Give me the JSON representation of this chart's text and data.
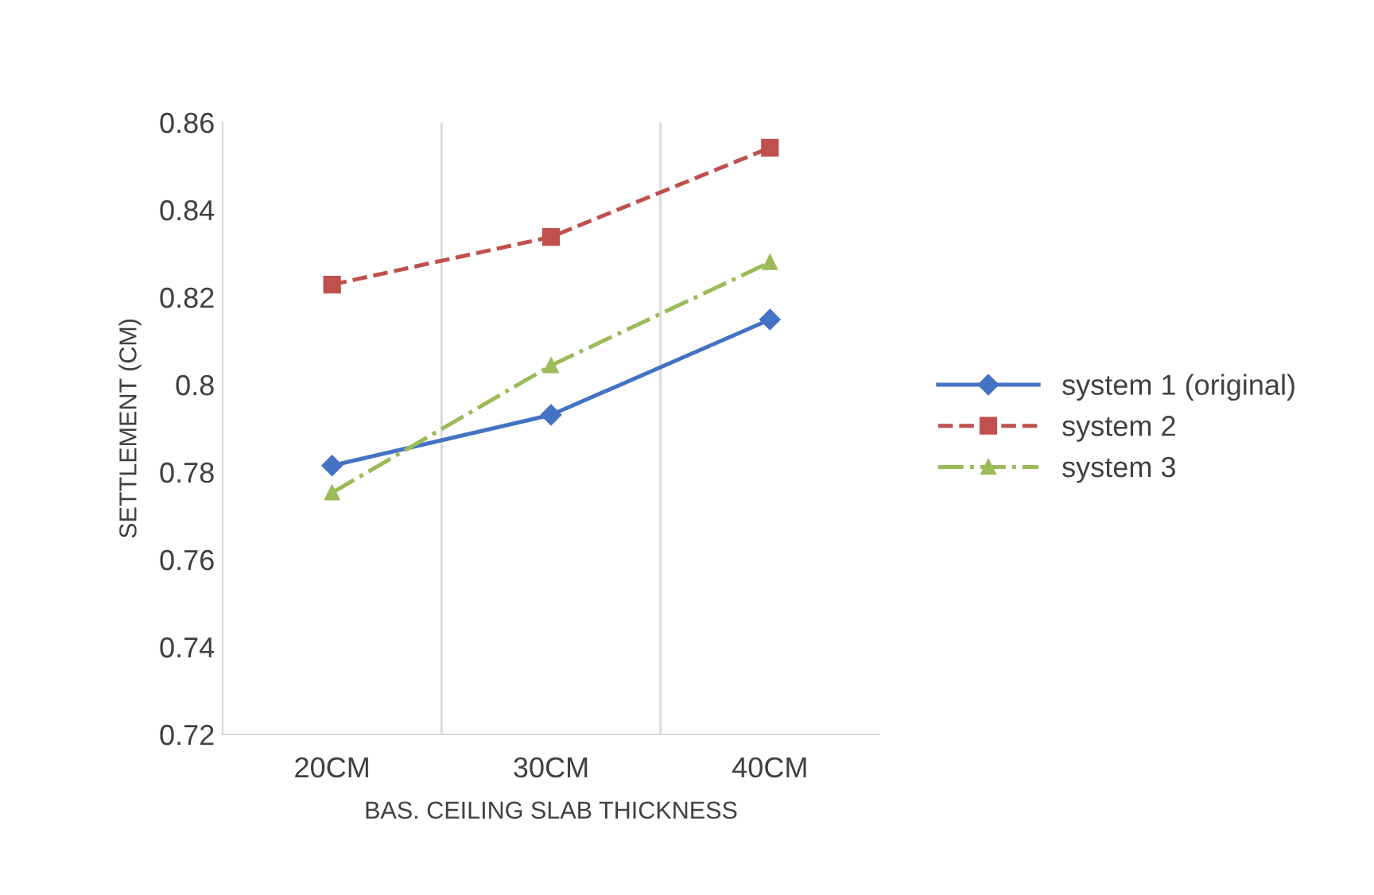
{
  "chart_data": {
    "type": "line",
    "xlabel": "BAS. CEILING SLAB THICKNESS",
    "ylabel": "SETTLEMENT (CM)",
    "categories": [
      "20CM",
      "30CM",
      "40CM"
    ],
    "series": [
      {
        "name": "system 1 (original)",
        "color": "#4472c4",
        "values": [
          0.7815,
          0.7931,
          0.8149
        ],
        "marker": "diamond",
        "line_style": "solid"
      },
      {
        "name": "system 2",
        "color": "#c0504d",
        "values": [
          0.8229,
          0.8338,
          0.8542
        ],
        "marker": "square",
        "line_style": "dashed"
      },
      {
        "name": "system 3",
        "color": "#9bbb59",
        "values": [
          0.7753,
          0.8044,
          0.828
        ],
        "marker": "triangle",
        "line_style": "dashdot"
      }
    ],
    "ylim": [
      0.72,
      0.86
    ],
    "yticks": [
      0.72,
      0.74,
      0.76,
      0.78,
      0.8,
      0.82,
      0.84,
      0.86
    ],
    "grid": "x",
    "legend": "right"
  }
}
